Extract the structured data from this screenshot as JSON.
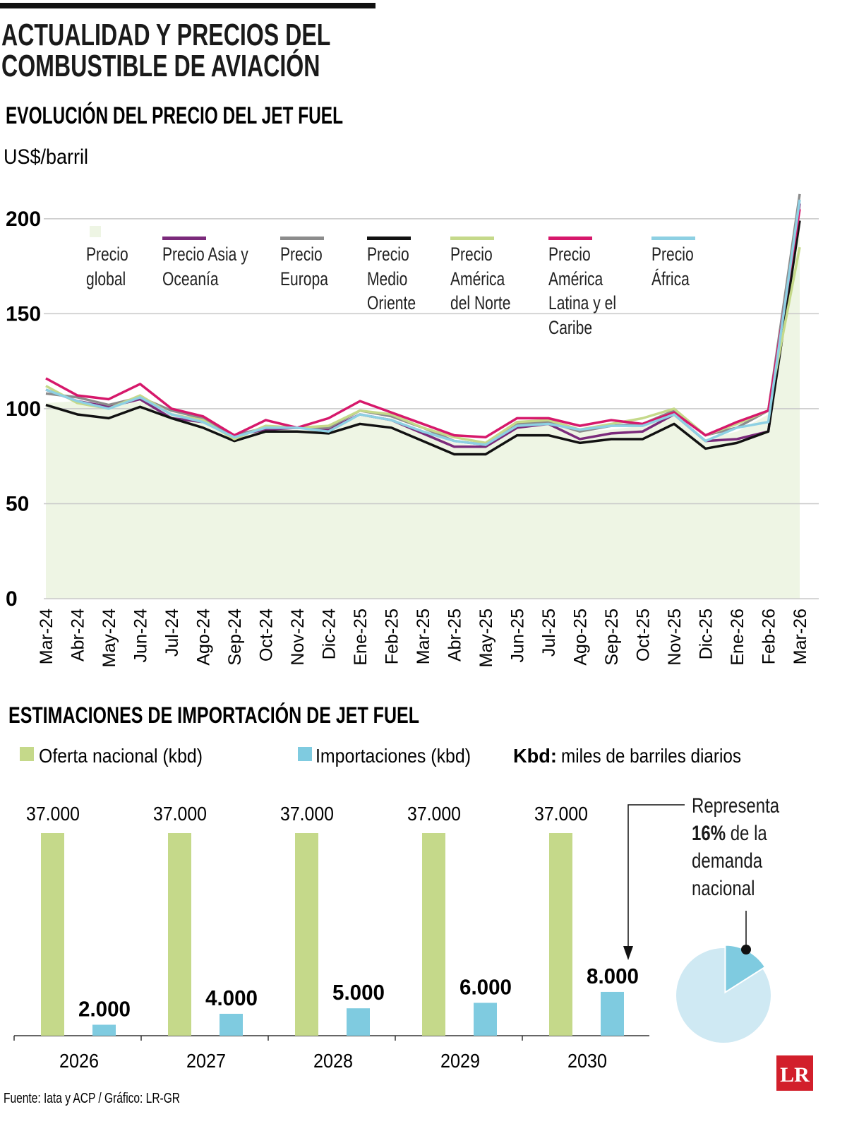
{
  "title": "ACTUALIDAD Y PRECIOS DEL COMBUSTIBLE DE AVIACIÓN",
  "chart_data": [
    {
      "type": "line",
      "title": "EVOLUCIÓN DEL PRECIO DEL JET FUEL",
      "y_label": "US$/barril",
      "categories": [
        "Mar-24",
        "Abr-24",
        "May-24",
        "Jun-24",
        "Jul-24",
        "Ago-24",
        "Sep-24",
        "Oct-24",
        "Nov-24",
        "Dic-24",
        "Ene-25",
        "Feb-25",
        "Mar-25",
        "Abr-25",
        "May-25",
        "Jun-25",
        "Jul-25",
        "Ago-25",
        "Sep-25",
        "Oct-25",
        "Nov-25",
        "Dic-25",
        "Ene-26",
        "Feb-26",
        "Mar-26"
      ],
      "ylim": [
        0,
        220
      ],
      "yticks": [
        0,
        50,
        100,
        150,
        200
      ],
      "grid": true,
      "series": [
        {
          "name": "Precio global",
          "color": "#eef5e4",
          "style": "area",
          "values": [
            103,
            104,
            101,
            104,
            98,
            93,
            84,
            89,
            89,
            88,
            96,
            95,
            88,
            82,
            80,
            90,
            92,
            88,
            89,
            91,
            96,
            84,
            88,
            97,
            200
          ]
        },
        {
          "name": "Precio Asia y Oceanía",
          "color": "#7b2a7b",
          "values": [
            110,
            104,
            101,
            105,
            95,
            93,
            86,
            89,
            90,
            89,
            97,
            94,
            87,
            80,
            80,
            90,
            92,
            84,
            87,
            88,
            97,
            83,
            84,
            88,
            208
          ]
        },
        {
          "name": "Precio Europa",
          "color": "#8c8c8c",
          "values": [
            108,
            106,
            102,
            106,
            99,
            95,
            86,
            90,
            90,
            90,
            99,
            96,
            90,
            83,
            81,
            92,
            93,
            88,
            91,
            92,
            99,
            86,
            90,
            99,
            213
          ]
        },
        {
          "name": "Precio Medio Oriente",
          "color": "#111111",
          "values": [
            102,
            97,
            95,
            101,
            95,
            90,
            83,
            88,
            88,
            87,
            92,
            90,
            83,
            76,
            76,
            86,
            86,
            82,
            84,
            84,
            92,
            79,
            82,
            88,
            199
          ]
        },
        {
          "name": "Precio América del Norte",
          "color": "#c5d98a",
          "values": [
            112,
            103,
            100,
            107,
            97,
            94,
            84,
            91,
            90,
            91,
            99,
            97,
            90,
            85,
            82,
            93,
            94,
            89,
            92,
            95,
            100,
            86,
            92,
            99,
            185
          ]
        },
        {
          "name": "Precio América Latina y el Caribe",
          "color": "#d6186b",
          "values": [
            116,
            107,
            105,
            113,
            100,
            96,
            86,
            94,
            90,
            95,
            104,
            98,
            92,
            86,
            85,
            95,
            95,
            91,
            94,
            92,
            98,
            86,
            93,
            99,
            205
          ]
        },
        {
          "name": "Precio África",
          "color": "#8dd0e3",
          "values": [
            110,
            104,
            100,
            106,
            97,
            93,
            85,
            90,
            90,
            88,
            97,
            94,
            88,
            83,
            81,
            91,
            92,
            89,
            91,
            91,
            97,
            83,
            90,
            93,
            210
          ]
        }
      ]
    },
    {
      "type": "bar",
      "title": "ESTIMACIONES DE IMPORTACIÓN DE JET FUEL",
      "note_term": "Kbd:",
      "note_text": "miles de barriles diarios",
      "categories": [
        "2026",
        "2027",
        "2028",
        "2029",
        "2030"
      ],
      "series": [
        {
          "name": "Oferta nacional (kbd)",
          "color": "#c5d98a",
          "values": [
            37000,
            37000,
            37000,
            37000,
            37000
          ],
          "value_labels": [
            "37.000",
            "37.000",
            "37.000",
            "37.000",
            "37.000"
          ]
        },
        {
          "name": "Importaciones (kbd)",
          "color": "#7fcbe0",
          "values": [
            2000,
            4000,
            5000,
            6000,
            8000
          ],
          "value_labels": [
            "2.000",
            "4.000",
            "5.000",
            "6.000",
            "8.000"
          ]
        }
      ]
    },
    {
      "type": "pie",
      "text_before": "Representa",
      "text_after": "de la demanda nacional",
      "values": [
        16
      ],
      "value_labels": [
        "16%"
      ],
      "colors": [
        "#7fcbe0"
      ]
    }
  ],
  "source": "Fuente: Iata y ACP / Gráfico: LR-GR",
  "logo": "LR"
}
